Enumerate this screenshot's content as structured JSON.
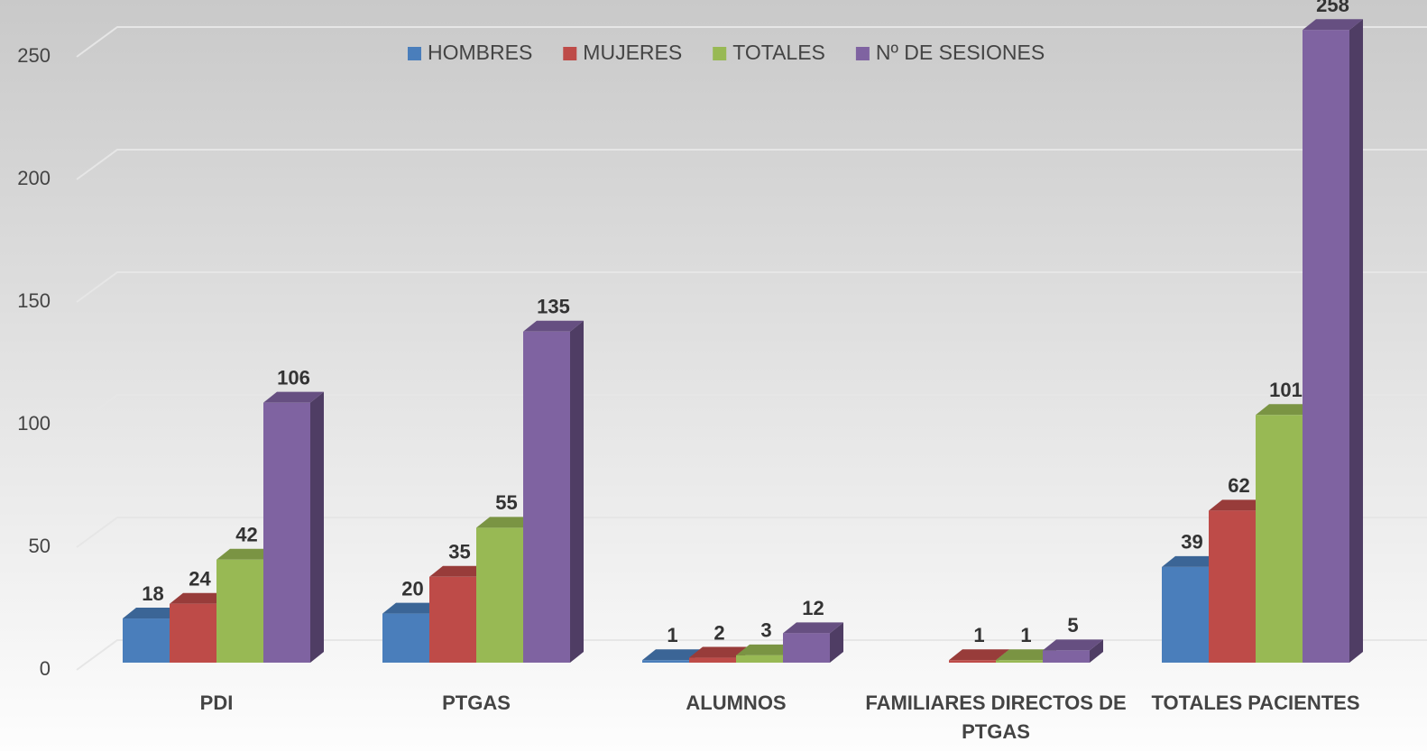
{
  "chart_data": {
    "type": "bar3d",
    "categories": [
      "PDI",
      "PTGAS",
      "ALUMNOS",
      "FAMILIARES DIRECTOS DE PTGAS",
      "TOTALES PACIENTES"
    ],
    "series": [
      {
        "name": "HOMBRES",
        "color": "#4a7ebb",
        "values": [
          18,
          20,
          1,
          null,
          39
        ]
      },
      {
        "name": "MUJERES",
        "color": "#be4b48",
        "values": [
          24,
          35,
          2,
          1,
          62
        ]
      },
      {
        "name": "TOTALES",
        "color": "#98b954",
        "values": [
          42,
          55,
          3,
          1,
          101
        ]
      },
      {
        "name": "Nº DE SESIONES",
        "color": "#7f63a1",
        "values": [
          106,
          135,
          12,
          5,
          258
        ]
      }
    ],
    "ylim": [
      0,
      258
    ],
    "yticks": [
      0,
      50,
      100,
      150,
      200,
      250
    ],
    "grid": true,
    "legend": "top"
  }
}
